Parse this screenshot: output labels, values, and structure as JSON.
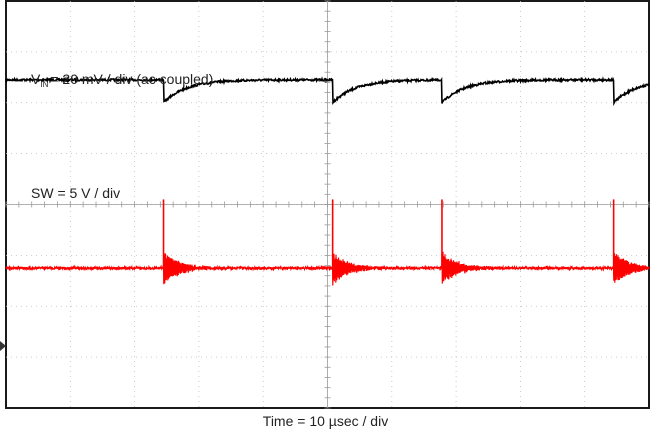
{
  "chart_data": {
    "type": "line",
    "title": "",
    "xlabel": "Time = 10 µsec / div",
    "grid": {
      "divisions_x": 10,
      "divisions_y": 8,
      "minor_ticks_per_div": 5,
      "dotted": true
    },
    "xlim_div": [
      0,
      10
    ],
    "switch_events_div": [
      2.45,
      5.08,
      6.78,
      9.45
    ],
    "series": [
      {
        "name_prefix": "V",
        "name_subscript": "IN",
        "name_rest": "= 20 mV / div (ac coupled)",
        "color": "#000000",
        "baseline_div": 1.55,
        "drop_div": 0.45,
        "recovery_tau_div": 0.35
      },
      {
        "name": "SW = 5 V / div",
        "color": "#ff0000",
        "baseline_div": 5.25,
        "spike_top_div": 3.9,
        "ringing_amplitude_div": 0.3,
        "ringing_tau_div": 0.25
      }
    ]
  }
}
